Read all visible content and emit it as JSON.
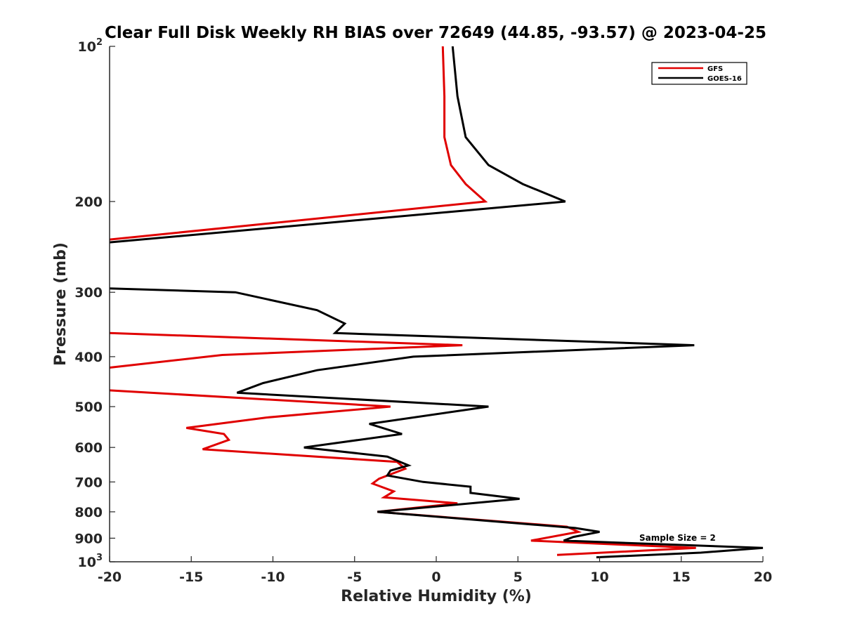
{
  "chart_data": {
    "type": "line",
    "title": "Clear Full Disk Weekly RH BIAS over 72649 (44.85, -93.57) @ 2023-04-25",
    "xlabel": "Relative Humidity (%)",
    "ylabel": "Pressure (mb)",
    "xlim": [
      -20,
      20
    ],
    "ylim": [
      100,
      1000
    ],
    "y_scale": "log",
    "y_reversed": true,
    "grid": false,
    "legend_position": "top-right",
    "x_ticks": [
      "-20",
      "-15",
      "-10",
      "-5",
      "0",
      "5",
      "10",
      "15",
      "20"
    ],
    "y_ticks": [
      {
        "value": 100,
        "base": "10",
        "exp": "2"
      },
      {
        "value": 200,
        "label": "200"
      },
      {
        "value": 300,
        "label": "300"
      },
      {
        "value": 400,
        "label": "400"
      },
      {
        "value": 500,
        "label": "500"
      },
      {
        "value": 600,
        "label": "600"
      },
      {
        "value": 700,
        "label": "700"
      },
      {
        "value": 800,
        "label": "800"
      },
      {
        "value": 900,
        "label": "900"
      },
      {
        "value": 1000,
        "base": "10",
        "exp": "3"
      }
    ],
    "annotation": "Sample Size = 2",
    "series": [
      {
        "name": "GFS",
        "color": "#e00000",
        "points": [
          [
            0.4,
            100
          ],
          [
            0.5,
            125
          ],
          [
            0.5,
            150
          ],
          [
            0.9,
            170
          ],
          [
            1.8,
            185
          ],
          [
            3.0,
            200
          ],
          [
            -20.0,
            237
          ],
          [
            null,
            250
          ],
          [
            -20.0,
            360
          ],
          [
            1.6,
            380
          ],
          [
            -13.1,
            397
          ],
          [
            -20.0,
            420
          ],
          [
            null,
            440
          ],
          [
            -20.0,
            465
          ],
          [
            -2.8,
            500
          ],
          [
            -10.4,
            525
          ],
          [
            -15.3,
            550
          ],
          [
            -13.0,
            565
          ],
          [
            -12.7,
            580
          ],
          [
            -14.3,
            605
          ],
          [
            -2.4,
            640
          ],
          [
            -1.9,
            660
          ],
          [
            -3.5,
            690
          ],
          [
            -3.9,
            705
          ],
          [
            -2.6,
            730
          ],
          [
            -3.2,
            750
          ],
          [
            1.3,
            770
          ],
          [
            -3.6,
            800
          ],
          [
            8.0,
            855
          ],
          [
            8.7,
            875
          ],
          [
            5.8,
            910
          ],
          [
            15.9,
            940
          ],
          [
            7.4,
            970
          ]
        ]
      },
      {
        "name": "GOES-16",
        "color": "#000000",
        "points": [
          [
            1.0,
            100
          ],
          [
            1.3,
            125
          ],
          [
            1.8,
            150
          ],
          [
            3.2,
            170
          ],
          [
            5.3,
            185
          ],
          [
            7.9,
            200
          ],
          [
            -20.0,
            240
          ],
          [
            null,
            250
          ],
          [
            -20.0,
            295
          ],
          [
            -12.3,
            300
          ],
          [
            -7.3,
            325
          ],
          [
            -5.6,
            345
          ],
          [
            -6.2,
            360
          ],
          [
            15.8,
            380
          ],
          [
            -1.4,
            400
          ],
          [
            -7.3,
            425
          ],
          [
            -10.6,
            450
          ],
          [
            -12.2,
            470
          ],
          [
            3.2,
            500
          ],
          [
            -4.1,
            540
          ],
          [
            -2.1,
            565
          ],
          [
            -8.1,
            600
          ],
          [
            -3.0,
            625
          ],
          [
            -1.7,
            650
          ],
          [
            -2.8,
            665
          ],
          [
            -3.0,
            680
          ],
          [
            -0.8,
            700
          ],
          [
            2.1,
            715
          ],
          [
            2.1,
            735
          ],
          [
            5.1,
            755
          ],
          [
            -3.6,
            800
          ],
          [
            8.5,
            860
          ],
          [
            10.0,
            875
          ],
          [
            8.4,
            895
          ],
          [
            7.8,
            910
          ],
          [
            20.0,
            940
          ],
          [
            16.2,
            960
          ],
          [
            9.8,
            980
          ]
        ]
      }
    ]
  }
}
